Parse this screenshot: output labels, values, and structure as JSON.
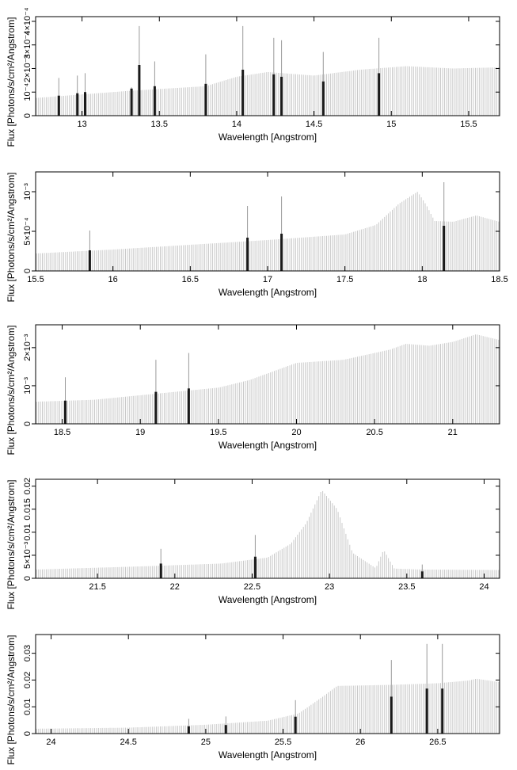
{
  "chart_data": [
    {
      "type": "bar",
      "xlabel": "Wavelength [Angstrom]",
      "ylabel": "Flux [Photons/s/cm²/Angstrom]",
      "xlim": [
        12.7,
        15.7
      ],
      "ylim": [
        0,
        0.00042
      ],
      "xticks": [
        {
          "v": 13,
          "label": "13"
        },
        {
          "v": 13.5,
          "label": "13.5"
        },
        {
          "v": 14,
          "label": "14"
        },
        {
          "v": 14.5,
          "label": "14.5"
        },
        {
          "v": 15,
          "label": "15"
        },
        {
          "v": 15.5,
          "label": "15.5"
        }
      ],
      "yticks": [
        {
          "v": 0,
          "label": "0"
        },
        {
          "v": 0.0001,
          "label": "10⁻⁴"
        },
        {
          "v": 0.0002,
          "label": "2×10⁻⁴"
        },
        {
          "v": 0.0003,
          "label": "3×10⁻⁴"
        },
        {
          "v": 0.0004,
          "label": "4×10⁻⁴"
        }
      ],
      "continuum": [
        [
          12.7,
          7.5e-05
        ],
        [
          13.3,
          0.000105
        ],
        [
          13.8,
          0.000125
        ],
        [
          14.0,
          0.000165
        ],
        [
          14.2,
          0.000185
        ],
        [
          14.5,
          0.00017
        ],
        [
          14.8,
          0.000195
        ],
        [
          15.1,
          0.00021
        ],
        [
          15.4,
          0.0002
        ],
        [
          15.7,
          0.000205
        ]
      ],
      "lines": [
        {
          "x": 12.85,
          "y": 8.5e-05,
          "err": 0.00016
        },
        {
          "x": 12.97,
          "y": 9.5e-05,
          "err": 0.00017
        },
        {
          "x": 13.02,
          "y": 0.0001,
          "err": 0.00018
        },
        {
          "x": 13.32,
          "y": 0.000115,
          "err": 0.00012
        },
        {
          "x": 13.37,
          "y": 0.000215,
          "err": 0.00038
        },
        {
          "x": 13.47,
          "y": 0.000125,
          "err": 0.00023
        },
        {
          "x": 13.8,
          "y": 0.000135,
          "err": 0.00026
        },
        {
          "x": 14.04,
          "y": 0.000195,
          "err": 0.00038
        },
        {
          "x": 14.24,
          "y": 0.000175,
          "err": 0.00033
        },
        {
          "x": 14.29,
          "y": 0.000165,
          "err": 0.00032
        },
        {
          "x": 14.56,
          "y": 0.000145,
          "err": 0.00027
        },
        {
          "x": 14.92,
          "y": 0.00018,
          "err": 0.00033
        }
      ]
    },
    {
      "type": "bar",
      "xlabel": "Wavelength [Angstrom]",
      "ylabel": "Flux [Photons/s/cm²/Angstrom]",
      "xlim": [
        15.5,
        18.5
      ],
      "ylim": [
        0,
        0.00125
      ],
      "xticks": [
        {
          "v": 15.5,
          "label": "15.5"
        },
        {
          "v": 16,
          "label": "16"
        },
        {
          "v": 16.5,
          "label": "16.5"
        },
        {
          "v": 17,
          "label": "17"
        },
        {
          "v": 17.5,
          "label": "17.5"
        },
        {
          "v": 18,
          "label": "18"
        },
        {
          "v": 18.5,
          "label": "18.5"
        }
      ],
      "yticks": [
        {
          "v": 0,
          "label": "0"
        },
        {
          "v": 0.0005,
          "label": "5×10⁻⁴"
        },
        {
          "v": 0.001,
          "label": "10⁻³"
        }
      ],
      "continuum": [
        [
          15.5,
          0.00022
        ],
        [
          16.0,
          0.00027
        ],
        [
          16.5,
          0.00033
        ],
        [
          17.0,
          0.00039
        ],
        [
          17.5,
          0.00046
        ],
        [
          17.7,
          0.00058
        ],
        [
          17.85,
          0.00085
        ],
        [
          17.97,
          0.001
        ],
        [
          18.03,
          0.00082
        ],
        [
          18.08,
          0.00063
        ],
        [
          18.2,
          0.00062
        ],
        [
          18.35,
          0.0007
        ],
        [
          18.5,
          0.00062
        ]
      ],
      "lines": [
        {
          "x": 15.85,
          "y": 0.00026,
          "err": 0.00051
        },
        {
          "x": 16.87,
          "y": 0.00042,
          "err": 0.00082
        },
        {
          "x": 17.09,
          "y": 0.00047,
          "err": 0.00094
        },
        {
          "x": 18.14,
          "y": 0.00057,
          "err": 0.00112
        }
      ]
    },
    {
      "type": "bar",
      "xlabel": "Wavelength [Angstrom]",
      "ylabel": "Flux [Photons/s/cm²/Angstrom]",
      "xlim": [
        18.33,
        21.3
      ],
      "ylim": [
        0,
        0.0026
      ],
      "xticks": [
        {
          "v": 18.5,
          "label": "18.5"
        },
        {
          "v": 19,
          "label": "19"
        },
        {
          "v": 19.5,
          "label": "19.5"
        },
        {
          "v": 20,
          "label": "20"
        },
        {
          "v": 20.5,
          "label": "20.5"
        },
        {
          "v": 21,
          "label": "21"
        }
      ],
      "yticks": [
        {
          "v": 0,
          "label": "0"
        },
        {
          "v": 0.001,
          "label": "10⁻³"
        },
        {
          "v": 0.002,
          "label": "2×10⁻³"
        }
      ],
      "continuum": [
        [
          18.33,
          0.00058
        ],
        [
          18.7,
          0.00063
        ],
        [
          19.0,
          0.00075
        ],
        [
          19.5,
          0.00095
        ],
        [
          19.7,
          0.00115
        ],
        [
          20.0,
          0.0016
        ],
        [
          20.3,
          0.00168
        ],
        [
          20.6,
          0.00195
        ],
        [
          20.7,
          0.0021
        ],
        [
          20.85,
          0.00205
        ],
        [
          21.0,
          0.00215
        ],
        [
          21.15,
          0.00235
        ],
        [
          21.3,
          0.0022
        ]
      ],
      "lines": [
        {
          "x": 18.52,
          "y": 0.00061,
          "err": 0.00122
        },
        {
          "x": 19.1,
          "y": 0.00084,
          "err": 0.00168
        },
        {
          "x": 19.31,
          "y": 0.00093,
          "err": 0.00186
        }
      ]
    },
    {
      "type": "bar",
      "xlabel": "Wavelength [Angstrom]",
      "ylabel": "Flux [Photons/s/cm²/Angstrom]",
      "xlim": [
        21.1,
        24.1
      ],
      "ylim": [
        0,
        0.0215
      ],
      "xticks": [
        {
          "v": 21.5,
          "label": "21.5"
        },
        {
          "v": 22,
          "label": "22"
        },
        {
          "v": 22.5,
          "label": "22.5"
        },
        {
          "v": 23,
          "label": "23"
        },
        {
          "v": 23.5,
          "label": "23.5"
        },
        {
          "v": 24,
          "label": "24"
        }
      ],
      "yticks": [
        {
          "v": 0,
          "label": "0"
        },
        {
          "v": 0.005,
          "label": "5×10⁻³"
        },
        {
          "v": 0.01,
          "label": "0.01"
        },
        {
          "v": 0.015,
          "label": "0.015"
        },
        {
          "v": 0.02,
          "label": "0.02"
        }
      ],
      "continuum": [
        [
          21.1,
          0.0019
        ],
        [
          21.8,
          0.0026
        ],
        [
          22.3,
          0.0032
        ],
        [
          22.6,
          0.0045
        ],
        [
          22.75,
          0.0075
        ],
        [
          22.85,
          0.012
        ],
        [
          22.95,
          0.0192
        ],
        [
          23.05,
          0.015
        ],
        [
          23.15,
          0.0055
        ],
        [
          23.3,
          0.0022
        ],
        [
          23.35,
          0.0062
        ],
        [
          23.42,
          0.0021
        ],
        [
          23.6,
          0.0019
        ],
        [
          24.1,
          0.0018
        ]
      ],
      "lines": [
        {
          "x": 21.91,
          "y": 0.0032,
          "err": 0.0064
        },
        {
          "x": 22.52,
          "y": 0.0047,
          "err": 0.0094
        },
        {
          "x": 23.6,
          "y": 0.0015,
          "err": 0.003
        }
      ]
    },
    {
      "type": "bar",
      "xlabel": "Wavelength [Angstrom]",
      "ylabel": "Flux [Photons/s/cm²/Angstrom]",
      "xlim": [
        23.9,
        26.9
      ],
      "ylim": [
        0,
        0.037
      ],
      "xticks": [
        {
          "v": 24,
          "label": "24"
        },
        {
          "v": 24.5,
          "label": "24.5"
        },
        {
          "v": 25,
          "label": "25"
        },
        {
          "v": 25.5,
          "label": "25.5"
        },
        {
          "v": 26,
          "label": "26"
        },
        {
          "v": 26.5,
          "label": "26.5"
        }
      ],
      "yticks": [
        {
          "v": 0,
          "label": "0"
        },
        {
          "v": 0.01,
          "label": "0.01"
        },
        {
          "v": 0.02,
          "label": "0.02"
        },
        {
          "v": 0.03,
          "label": "0.03"
        }
      ],
      "continuum": [
        [
          23.9,
          0.0018
        ],
        [
          24.5,
          0.0022
        ],
        [
          25.0,
          0.0033
        ],
        [
          25.4,
          0.0048
        ],
        [
          25.6,
          0.0075
        ],
        [
          25.75,
          0.0135
        ],
        [
          25.85,
          0.0178
        ],
        [
          26.2,
          0.0182
        ],
        [
          26.5,
          0.0188
        ],
        [
          26.7,
          0.0198
        ],
        [
          26.75,
          0.0205
        ],
        [
          26.9,
          0.0192
        ]
      ],
      "lines": [
        {
          "x": 24.89,
          "y": 0.0027,
          "err": 0.0055
        },
        {
          "x": 25.13,
          "y": 0.0032,
          "err": 0.0064
        },
        {
          "x": 25.58,
          "y": 0.0063,
          "err": 0.0125
        },
        {
          "x": 26.2,
          "y": 0.0138,
          "err": 0.0275
        },
        {
          "x": 26.43,
          "y": 0.0168,
          "err": 0.0335
        },
        {
          "x": 26.53,
          "y": 0.0168,
          "err": 0.0335
        }
      ]
    }
  ]
}
